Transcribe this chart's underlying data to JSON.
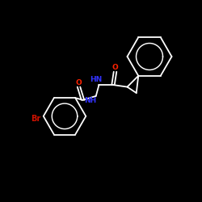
{
  "background_color": "#000000",
  "bond_color": "#ffffff",
  "N_color": "#3333ff",
  "O_color": "#ff2200",
  "Br_color": "#cc1100",
  "lw": 1.3,
  "figsize": [
    2.5,
    2.5
  ],
  "dpi": 100,
  "xlim": [
    0,
    10
  ],
  "ylim": [
    0,
    10
  ],
  "font_size": 6.5
}
